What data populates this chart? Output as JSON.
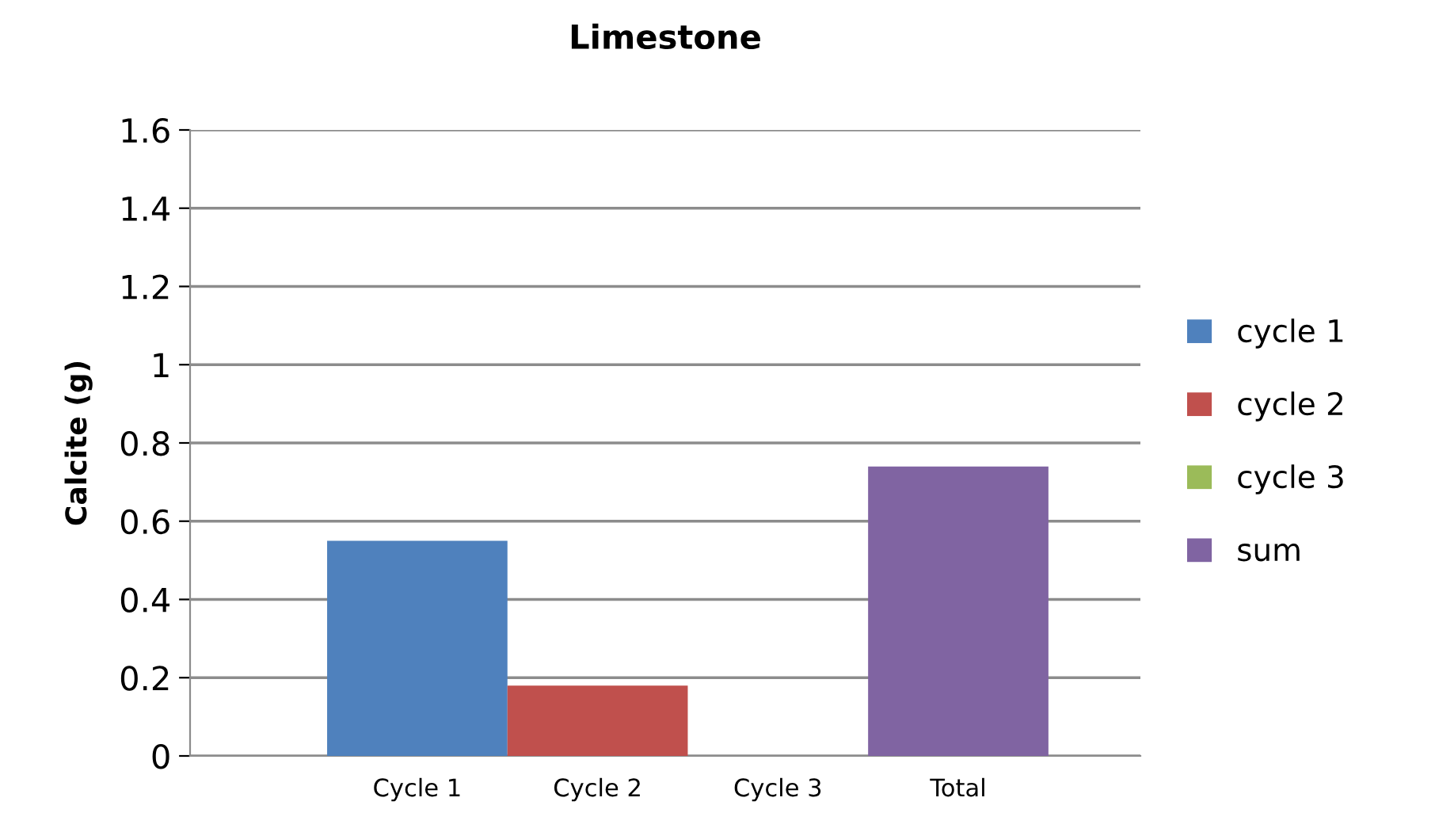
{
  "chart_data": {
    "type": "bar",
    "title": "Limestone",
    "ylabel": "Calcite (g)",
    "categories": [
      "Cycle 1",
      "Cycle 2",
      "Cycle 3",
      "Total"
    ],
    "series": [
      {
        "name": "cycle 1",
        "color": "#4f81bd",
        "values": [
          0.55,
          null,
          null,
          null
        ]
      },
      {
        "name": "cycle 2",
        "color": "#c0504d",
        "values": [
          null,
          0.18,
          null,
          null
        ]
      },
      {
        "name": "cycle 3",
        "color": "#9bbb59",
        "values": [
          null,
          null,
          0,
          null
        ]
      },
      {
        "name": "sum",
        "color": "#8064a2",
        "values": [
          null,
          null,
          null,
          0.74
        ]
      }
    ],
    "ylim": [
      0,
      1.6
    ],
    "yticks": [
      0,
      0.2,
      0.4,
      0.6,
      0.8,
      1,
      1.2,
      1.4,
      1.6
    ],
    "grid": "y",
    "legend": "right"
  }
}
